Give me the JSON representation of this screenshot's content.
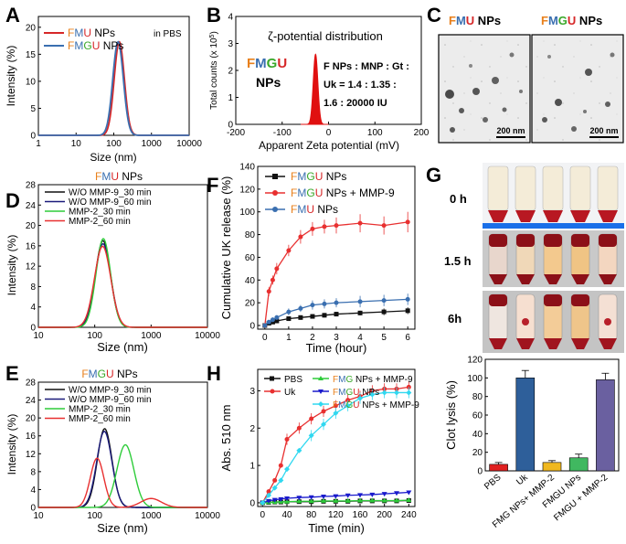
{
  "colors": {
    "letter_F": "#e8801c",
    "letter_M": "#3a6fb0",
    "letter_U": "#d62728",
    "letter_G": "#3aa82a",
    "fmu_curve": "#d62728",
    "fmgu_curve": "#3a6fb0",
    "zeta_peak": "#e01010",
    "black": "#111111",
    "navy": "#1a1a7a",
    "green": "#2ecc3a",
    "red": "#e83030",
    "cyan": "#30d8f0",
    "blue": "#1a1acc",
    "bar_pbs": "#e02020",
    "bar_uk": "#2e5f9a",
    "bar_fmg": "#f0b820",
    "bar_fmgu": "#40b860",
    "bar_fmgu_mmp": "#6a60a0"
  },
  "panel_labels": {
    "A": "A",
    "B": "B",
    "C": "C",
    "D": "D",
    "E": "E",
    "F": "F",
    "G": "G",
    "H": "H"
  },
  "common": {
    "F": "F",
    "M": "M",
    "U": "U",
    "G": "G",
    "NPs": " NPs",
    "NPs_word": "NPs",
    "NPs_mmp9": " NPs + MMP-9",
    "size_label": "Size (nm)",
    "intensity_label": "Intensity (%)"
  },
  "panel_A": {
    "annotation": "in PBS",
    "chart_data": {
      "type": "line",
      "title": "",
      "xlabel": "Size (nm)",
      "ylabel": "Intensity (%)",
      "xscale": "log",
      "xlim": [
        1,
        10000
      ],
      "ylim": [
        0,
        22
      ],
      "xticks": [
        "1",
        "10",
        "100",
        "1000",
        "10000"
      ],
      "yticks": [
        "0",
        "5",
        "10",
        "15",
        "20"
      ],
      "series": [
        {
          "name": "FMU NPs",
          "peak_x": 140,
          "peak_y": 17.3,
          "log_sigma": 0.135
        },
        {
          "name": "FMGU NPs",
          "peak_x": 130,
          "peak_y": 17.3,
          "log_sigma": 0.14
        }
      ]
    }
  },
  "panel_B": {
    "title": "ζ-potential distribution",
    "comp_line1": "F NPs : MNP : Gt :",
    "comp_line2": "Uk = 1.4 : 1.35 :",
    "comp_line3": "1.6 : 20000 IU",
    "ylabel_main": "Total counts (x 10",
    "ylabel_sup": "5",
    "ylabel_end": ")",
    "chart_data": {
      "type": "area",
      "title": "ζ-potential distribution",
      "xlabel": "Apparent Zeta potential (mV)",
      "ylabel": "Total counts (x 10^5)",
      "xlim": [
        -200,
        200
      ],
      "ylim": [
        0,
        4
      ],
      "xticks": [
        "-200",
        "-100",
        "0",
        "100",
        "200"
      ],
      "yticks": [
        "0",
        "1",
        "2",
        "3",
        "4"
      ],
      "series": [
        {
          "name": "FMGU NPs",
          "peak_x": -28,
          "peak_y": 2.6,
          "sigma": 5
        }
      ]
    }
  },
  "panel_C": {
    "scale_left": "200 nm",
    "scale_right": "200 nm"
  },
  "panel_D": {
    "chart_data": {
      "type": "line",
      "title": "FMU NPs",
      "xlabel": "Size (nm)",
      "ylabel": "Intensity (%)",
      "xscale": "log",
      "xlim": [
        10,
        10000
      ],
      "ylim": [
        0,
        28
      ],
      "xticks": [
        "10",
        "100",
        "1000",
        "10000"
      ],
      "yticks": [
        "0",
        "4",
        "8",
        "12",
        "16",
        "20",
        "24",
        "28"
      ],
      "series": [
        {
          "name": "W/O MMP-9_30 min",
          "peak_x": 140,
          "peak_y": 17.0,
          "log_sigma": 0.135
        },
        {
          "name": "W/O MMP-9_60 min",
          "peak_x": 140,
          "peak_y": 16.4,
          "log_sigma": 0.14
        },
        {
          "name": "MMP-2_30 min",
          "peak_x": 142,
          "peak_y": 17.4,
          "log_sigma": 0.13
        },
        {
          "name": "MMP-2_60 min",
          "peak_x": 138,
          "peak_y": 15.9,
          "log_sigma": 0.145
        }
      ]
    }
  },
  "panel_E": {
    "chart_data": {
      "type": "line",
      "title": "FMGU NPs",
      "xlabel": "Size (nm)",
      "ylabel": "Intensity (%)",
      "xscale": "log",
      "xlim": [
        10,
        10000
      ],
      "ylim": [
        0,
        28
      ],
      "xticks": [
        "10",
        "100",
        "1000",
        "10000"
      ],
      "yticks": [
        "0",
        "4",
        "8",
        "12",
        "16",
        "20",
        "24",
        "28"
      ],
      "series": [
        {
          "name": "W/O MMP-9_30 min",
          "peaks": [
            [
              150,
              17.6,
              0.13
            ]
          ]
        },
        {
          "name": "W/O MMP-9_60 min",
          "peaks": [
            [
              148,
              17.0,
              0.135
            ]
          ]
        },
        {
          "name": "MMP-2_30 min",
          "peaks": [
            [
              350,
              14.0,
              0.15
            ]
          ]
        },
        {
          "name": "MMP-2_60 min",
          "peaks": [
            [
              110,
              11.0,
              0.12
            ],
            [
              1000,
              2.0,
              0.18
            ]
          ]
        }
      ]
    }
  },
  "panel_F": {
    "chart_data": {
      "type": "line",
      "title": "",
      "xlabel": "Time (hour)",
      "ylabel": "Cumulative UK release (%)",
      "xlim": [
        0,
        6
      ],
      "ylim": [
        0,
        140
      ],
      "xticks": [
        "0",
        "1",
        "2",
        "3",
        "4",
        "5",
        "6"
      ],
      "yticks": [
        "0",
        "20",
        "40",
        "60",
        "80",
        "100",
        "120",
        "140"
      ],
      "x": [
        0,
        0.17,
        0.33,
        0.5,
        1,
        1.5,
        2,
        2.5,
        3,
        4,
        5,
        6
      ],
      "series": [
        {
          "name": "FMGU NPs",
          "values": [
            0,
            2,
            3,
            4,
            6,
            7,
            8,
            9,
            10,
            11,
            12,
            13
          ],
          "errors": [
            0,
            1,
            1,
            1,
            2,
            2,
            2,
            2,
            2,
            2,
            3,
            3
          ]
        },
        {
          "name": "FMGU NPs + MMP-9",
          "values": [
            0,
            30,
            40,
            50,
            66,
            78,
            85,
            87,
            88,
            90,
            88,
            91
          ],
          "errors": [
            0,
            4,
            4,
            5,
            5,
            6,
            6,
            6,
            7,
            8,
            8,
            9
          ]
        },
        {
          "name": "FMU NPs",
          "values": [
            0,
            3,
            5,
            7,
            12,
            15,
            18,
            19,
            20,
            21,
            22,
            23
          ],
          "errors": [
            0,
            1,
            2,
            2,
            3,
            3,
            4,
            4,
            4,
            5,
            5,
            5
          ]
        }
      ]
    }
  },
  "panel_G": {
    "row_labels": [
      "0 h",
      "1.5 h",
      "6h"
    ],
    "tube_levels": [
      "red blood clot",
      "clot partially lysed",
      "clot lysed"
    ],
    "chart_data": {
      "type": "bar",
      "title": "",
      "xlabel": "",
      "ylabel": "Clot lysis (%)",
      "ylim": [
        0,
        120
      ],
      "yticks": [
        "0",
        "20",
        "40",
        "60",
        "80",
        "100",
        "120"
      ],
      "categories": [
        "PBS",
        "Uk",
        "FMG NPs+ MMP-2",
        "FMGU NPs",
        "FMGU + MMP-2"
      ],
      "values": [
        7,
        100,
        9,
        14,
        98
      ],
      "errors": [
        2,
        8,
        2,
        4,
        7
      ]
    }
  },
  "panel_H": {
    "chart_data": {
      "type": "line",
      "title": "",
      "xlabel": "Time (min)",
      "ylabel": "Abs. 510 nm",
      "xlim": [
        0,
        250
      ],
      "ylim": [
        0,
        3.5
      ],
      "xticks": [
        "0",
        "40",
        "80",
        "120",
        "160",
        "200",
        "240"
      ],
      "yticks": [
        "0",
        "1",
        "2",
        "3"
      ],
      "x": [
        0,
        10,
        20,
        30,
        40,
        60,
        80,
        100,
        120,
        140,
        160,
        180,
        200,
        220,
        240
      ],
      "series": [
        {
          "name": "PBS",
          "values": [
            0,
            0.01,
            0.02,
            0.02,
            0.03,
            0.03,
            0.03,
            0.04,
            0.04,
            0.04,
            0.05,
            0.05,
            0.05,
            0.05,
            0.06
          ]
        },
        {
          "name": "Uk",
          "values": [
            0,
            0.3,
            0.6,
            1.0,
            1.7,
            2.0,
            2.25,
            2.45,
            2.6,
            2.75,
            2.85,
            3.0,
            3.05,
            3.05,
            3.1
          ]
        },
        {
          "name": "FMG NPs + MMP-9",
          "values": [
            0,
            0.01,
            0.02,
            0.03,
            0.03,
            0.04,
            0.04,
            0.05,
            0.05,
            0.05,
            0.06,
            0.06,
            0.06,
            0.06,
            0.07
          ]
        },
        {
          "name": "FMGU NPs",
          "values": [
            0,
            0.05,
            0.08,
            0.1,
            0.12,
            0.14,
            0.15,
            0.17,
            0.18,
            0.2,
            0.21,
            0.22,
            0.24,
            0.26,
            0.28
          ]
        },
        {
          "name": "FMGU NPs + MMP-9",
          "values": [
            0,
            0.2,
            0.4,
            0.6,
            0.9,
            1.4,
            1.8,
            2.1,
            2.4,
            2.6,
            2.8,
            2.9,
            2.95,
            2.95,
            2.95
          ]
        }
      ]
    }
  }
}
